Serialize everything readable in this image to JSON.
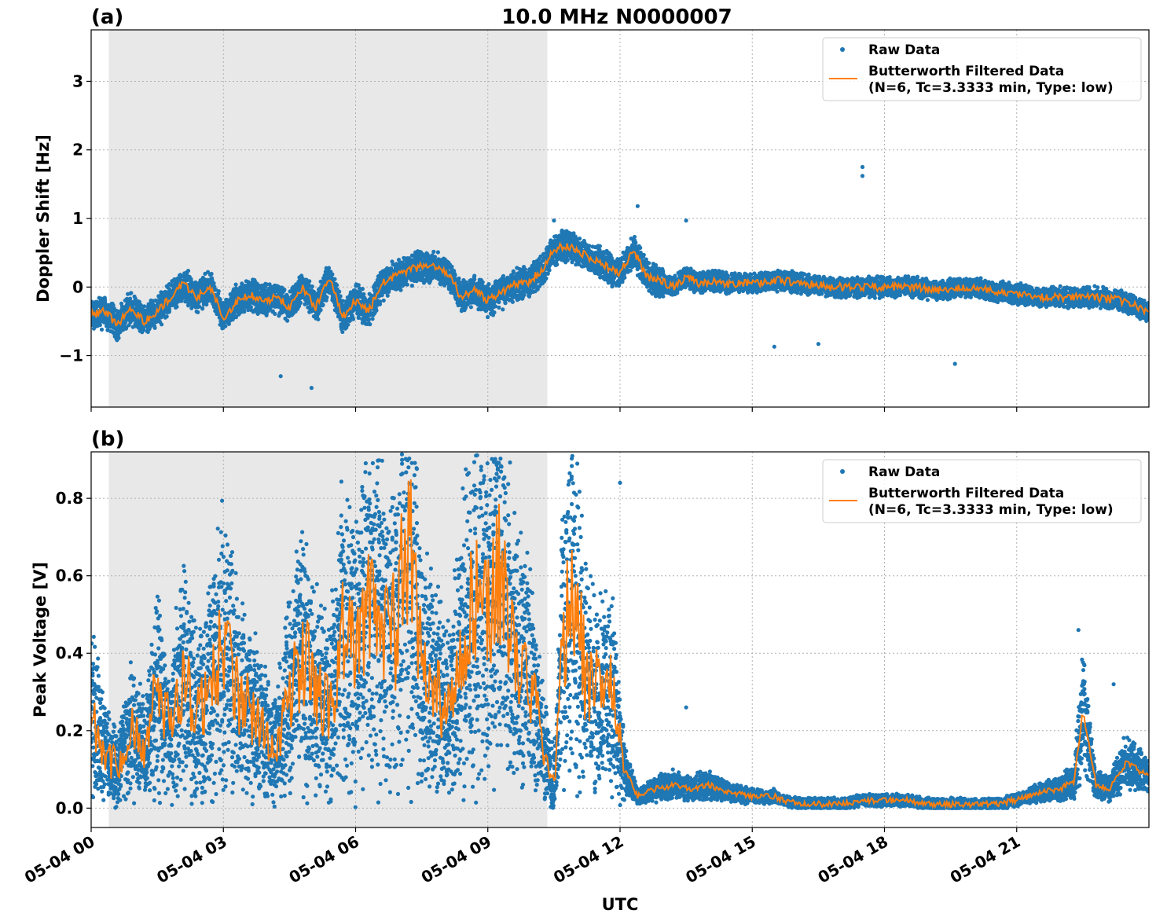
{
  "title": "10.0 MHz N0000007",
  "xlabel": "UTC",
  "x_tick_labels": [
    "05-04 00",
    "05-04 03",
    "05-04 06",
    "05-04 09",
    "05-04 12",
    "05-04 15",
    "05-04 18",
    "05-04 21"
  ],
  "colors": {
    "raw": "#1f77b4",
    "filtered": "#ff7f0e",
    "shade": "#e8e8e8"
  },
  "chart_data": [
    {
      "panel_label": "(a)",
      "type": "scatter",
      "ylabel": "Doppler Shift [Hz]",
      "xlim_hours": [
        0,
        24
      ],
      "ylim": [
        -1.75,
        3.75
      ],
      "yticks": [
        -1,
        0,
        1,
        2,
        3
      ],
      "ytick_labels": [
        "−1",
        "0",
        "1",
        "2",
        "3"
      ],
      "grid": true,
      "legend_position": "top-right",
      "shaded_region_hours": [
        0.4,
        10.35
      ],
      "series": [
        {
          "name": "Raw Data",
          "kind": "scatter",
          "note_spread": 0.22,
          "outliers": [
            [
              17.5,
              1.75
            ],
            [
              17.5,
              1.62
            ],
            [
              5.0,
              -1.47
            ],
            [
              4.3,
              -1.3
            ],
            [
              19.6,
              -1.12
            ],
            [
              15.5,
              -0.87
            ],
            [
              16.5,
              -0.83
            ],
            [
              13.5,
              0.97
            ],
            [
              12.4,
              1.18
            ],
            [
              10.5,
              0.97
            ]
          ]
        },
        {
          "name": "Butterworth Filtered Data\n(N=6, Tc=3.3333 min, Type: low)",
          "kind": "line",
          "x_hours": [
            0,
            0.3,
            0.6,
            0.9,
            1.2,
            1.5,
            1.8,
            2.1,
            2.4,
            2.7,
            3.0,
            3.3,
            3.6,
            3.9,
            4.2,
            4.5,
            4.8,
            5.1,
            5.4,
            5.7,
            6.0,
            6.3,
            6.6,
            6.9,
            7.2,
            7.5,
            7.8,
            8.1,
            8.4,
            8.7,
            9.0,
            9.3,
            9.6,
            9.9,
            10.3,
            10.5,
            10.8,
            11.1,
            11.4,
            11.7,
            12.0,
            12.3,
            12.6,
            12.9,
            13.2,
            13.5,
            13.8,
            14.1,
            14.4,
            14.7,
            15.0,
            15.6,
            16.2,
            16.8,
            17.4,
            18.0,
            18.6,
            19.2,
            19.8,
            20.4,
            21.0,
            21.6,
            22.2,
            22.8,
            23.4,
            24.0
          ],
          "y": [
            -0.4,
            -0.35,
            -0.55,
            -0.3,
            -0.5,
            -0.35,
            -0.15,
            0.05,
            -0.15,
            0.0,
            -0.45,
            -0.2,
            -0.1,
            -0.2,
            -0.15,
            -0.3,
            0.0,
            -0.3,
            0.15,
            -0.45,
            -0.2,
            -0.35,
            0.05,
            0.15,
            0.25,
            0.3,
            0.3,
            0.2,
            -0.15,
            -0.05,
            -0.2,
            -0.1,
            0.05,
            0.05,
            0.3,
            0.55,
            0.6,
            0.5,
            0.4,
            0.3,
            0.2,
            0.55,
            0.15,
            0.1,
            0.0,
            0.15,
            0.05,
            0.1,
            0.05,
            0.05,
            0.05,
            0.1,
            0.05,
            0.0,
            0.0,
            0.0,
            0.0,
            -0.05,
            0.0,
            -0.05,
            -0.1,
            -0.15,
            -0.15,
            -0.15,
            -0.2,
            -0.35
          ]
        }
      ]
    },
    {
      "panel_label": "(b)",
      "type": "scatter",
      "ylabel": "Peak Voltage [V]",
      "xlim_hours": [
        0,
        24
      ],
      "ylim": [
        -0.05,
        0.92
      ],
      "yticks": [
        0.0,
        0.2,
        0.4,
        0.6,
        0.8
      ],
      "ytick_labels": [
        "0.0",
        "0.2",
        "0.4",
        "0.6",
        "0.8"
      ],
      "grid": true,
      "legend_position": "top-right",
      "shaded_region_hours": [
        0.4,
        10.35
      ],
      "series": [
        {
          "name": "Raw Data",
          "kind": "scatter",
          "outliers": [
            [
              22.4,
              0.46
            ],
            [
              23.2,
              0.32
            ],
            [
              13.5,
              0.26
            ],
            [
              12.0,
              0.84
            ],
            [
              10.9,
              0.85
            ],
            [
              6.5,
              0.88
            ],
            [
              7.2,
              0.88
            ]
          ]
        },
        {
          "name": "Butterworth Filtered Data\n(N=6, Tc=3.3333 min, Type: low)",
          "kind": "line",
          "x_hours": [
            0,
            0.3,
            0.6,
            0.9,
            1.2,
            1.5,
            1.8,
            2.1,
            2.4,
            2.7,
            3.0,
            3.3,
            3.6,
            3.9,
            4.2,
            4.5,
            4.8,
            5.1,
            5.4,
            5.7,
            6.0,
            6.3,
            6.6,
            6.9,
            7.2,
            7.5,
            7.8,
            8.1,
            8.4,
            8.7,
            9.0,
            9.3,
            9.6,
            9.9,
            10.2,
            10.5,
            10.7,
            10.9,
            11.2,
            11.5,
            11.8,
            12.1,
            12.4,
            12.8,
            13.2,
            13.6,
            14.0,
            14.5,
            15.0,
            15.5,
            16.0,
            16.5,
            17.0,
            17.5,
            18.0,
            18.5,
            19.0,
            19.5,
            20.0,
            20.5,
            21.0,
            21.5,
            22.0,
            22.3,
            22.5,
            22.8,
            23.1,
            23.5,
            24.0
          ],
          "y": [
            0.25,
            0.15,
            0.1,
            0.2,
            0.15,
            0.3,
            0.2,
            0.35,
            0.25,
            0.3,
            0.45,
            0.3,
            0.25,
            0.2,
            0.15,
            0.3,
            0.4,
            0.3,
            0.25,
            0.45,
            0.4,
            0.55,
            0.5,
            0.45,
            0.75,
            0.35,
            0.3,
            0.25,
            0.4,
            0.55,
            0.5,
            0.6,
            0.4,
            0.35,
            0.2,
            0.05,
            0.4,
            0.6,
            0.35,
            0.3,
            0.3,
            0.1,
            0.03,
            0.05,
            0.06,
            0.05,
            0.06,
            0.04,
            0.03,
            0.03,
            0.01,
            0.01,
            0.01,
            0.02,
            0.02,
            0.02,
            0.01,
            0.01,
            0.01,
            0.01,
            0.02,
            0.04,
            0.05,
            0.07,
            0.25,
            0.06,
            0.05,
            0.12,
            0.08
          ]
        }
      ]
    }
  ]
}
